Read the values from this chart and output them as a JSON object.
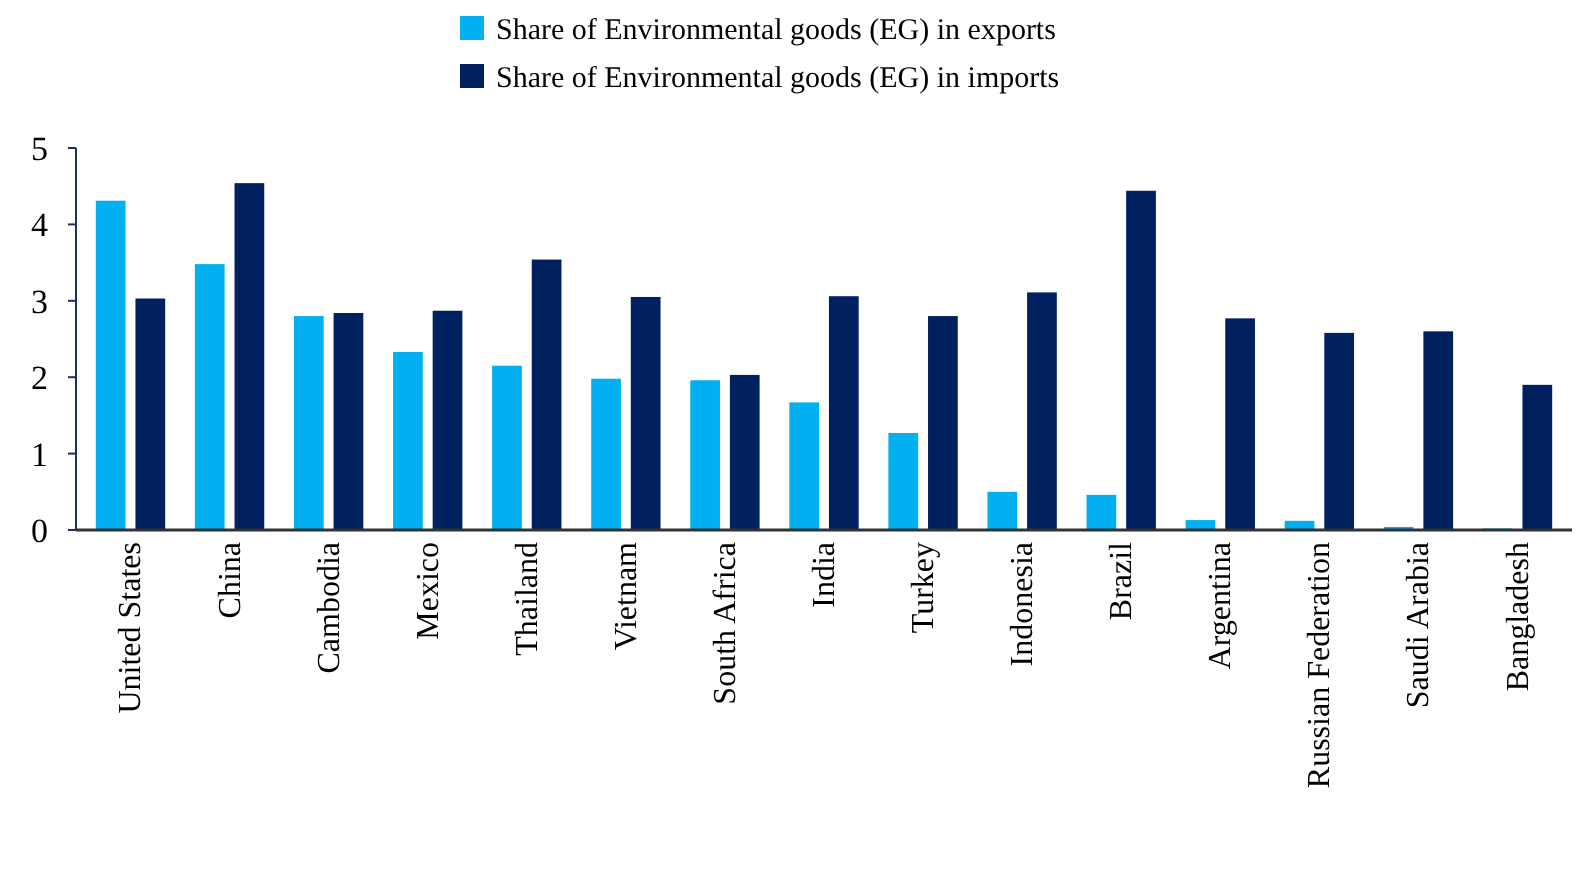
{
  "chart_data": {
    "type": "bar",
    "categories": [
      "United States",
      "China",
      "Cambodia",
      "Mexico",
      "Thailand",
      "Vietnam",
      "South Africa",
      "India",
      "Turkey",
      "Indonesia",
      "Brazil",
      "Argentina",
      "Russian Federation",
      "Saudi Arabia",
      "Bangladesh"
    ],
    "series": [
      {
        "name": "Share of Environmental goods (EG) in exports",
        "color": "#00b0f0",
        "values": [
          4.31,
          3.48,
          2.8,
          2.33,
          2.15,
          1.98,
          1.96,
          1.67,
          1.27,
          0.5,
          0.46,
          0.13,
          0.12,
          0.04,
          0.02
        ]
      },
      {
        "name": "Share of Environmental goods (EG) in imports",
        "color": "#002060",
        "values": [
          3.03,
          4.54,
          2.84,
          2.87,
          3.54,
          3.05,
          2.03,
          3.06,
          2.8,
          3.11,
          4.44,
          2.77,
          2.58,
          2.6,
          1.9
        ]
      }
    ],
    "ylim": [
      0,
      5
    ],
    "yticks": [
      0,
      1,
      2,
      3,
      4,
      5
    ],
    "grid": false,
    "legend": "top"
  }
}
